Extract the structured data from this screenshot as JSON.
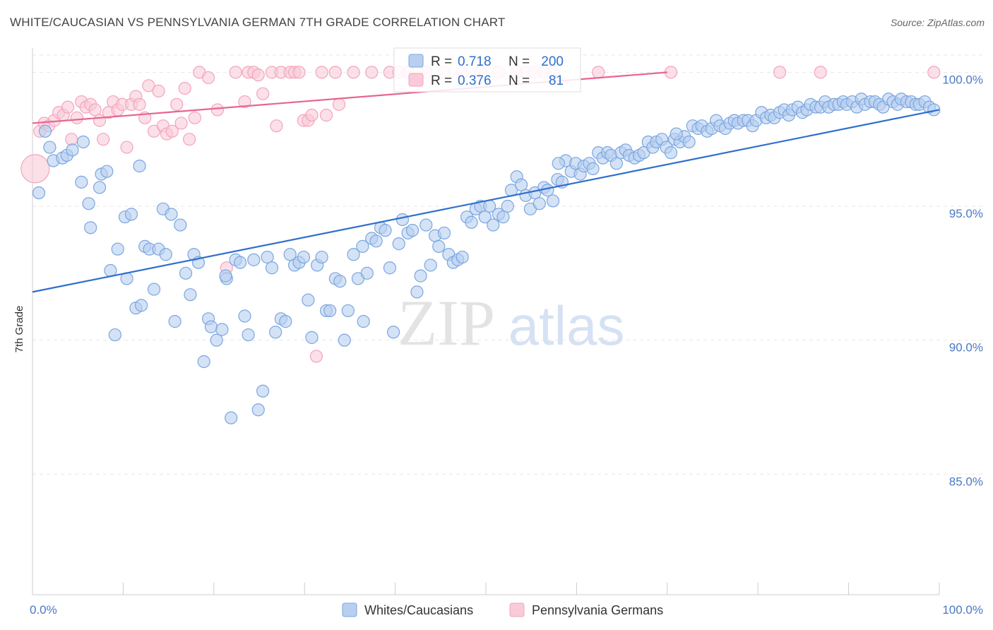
{
  "title": "WHITE/CAUCASIAN VS PENNSYLVANIA GERMAN 7TH GRADE CORRELATION CHART",
  "source": "Source: ZipAtlas.com",
  "watermark": {
    "zip": "ZIP",
    "atlas": "atlas"
  },
  "chart_data": {
    "type": "scatter",
    "ylabel": "7th Grade",
    "xlim": [
      0,
      100
    ],
    "ylim": [
      80.5,
      100.8
    ],
    "x_tick_labels": [
      "0.0%",
      "100.0%"
    ],
    "y_ticks": [
      85,
      90,
      95,
      100
    ],
    "y_tick_labels": [
      "85.0%",
      "90.0%",
      "95.0%",
      "100.0%"
    ],
    "grid": true,
    "legend_position": "bottom",
    "stats_box_position": "top-center",
    "series": [
      {
        "name": "Whites/Caucasians",
        "color": "#7aa6e0",
        "line_color": "#2e6fcc",
        "r_label": "R =",
        "r": "0.718",
        "n_label": "N =",
        "n": "200",
        "trend": {
          "x": [
            0,
            100
          ],
          "y": [
            91.8,
            98.6
          ]
        },
        "points": [
          [
            0.7,
            95.5
          ],
          [
            1.4,
            97.8
          ],
          [
            1.9,
            97.2
          ],
          [
            2.3,
            96.7
          ],
          [
            3.3,
            96.8
          ],
          [
            3.8,
            96.9
          ],
          [
            4.4,
            97.1
          ],
          [
            5.6,
            97.4
          ],
          [
            6.2,
            95.1
          ],
          [
            5.4,
            95.9
          ],
          [
            6.4,
            94.2
          ],
          [
            7.4,
            95.7
          ],
          [
            7.6,
            96.2
          ],
          [
            8.2,
            96.3
          ],
          [
            8.6,
            92.6
          ],
          [
            9.1,
            90.2
          ],
          [
            9.4,
            93.4
          ],
          [
            10.2,
            94.6
          ],
          [
            10.4,
            92.3
          ],
          [
            10.9,
            94.7
          ],
          [
            11.4,
            91.2
          ],
          [
            11.8,
            96.5
          ],
          [
            12.4,
            93.5
          ],
          [
            12.9,
            93.4
          ],
          [
            13.4,
            91.9
          ],
          [
            13.9,
            93.4
          ],
          [
            14.4,
            94.9
          ],
          [
            14.7,
            93.2
          ],
          [
            15.3,
            94.7
          ],
          [
            15.7,
            90.7
          ],
          [
            16.3,
            94.3
          ],
          [
            16.9,
            92.5
          ],
          [
            17.4,
            91.7
          ],
          [
            17.8,
            93.2
          ],
          [
            18.3,
            92.9
          ],
          [
            18.9,
            89.2
          ],
          [
            19.4,
            90.8
          ],
          [
            19.7,
            90.5
          ],
          [
            20.3,
            90.0
          ],
          [
            20.9,
            90.4
          ],
          [
            21.4,
            92.3
          ],
          [
            21.9,
            87.1
          ],
          [
            22.4,
            93.0
          ],
          [
            22.9,
            92.9
          ],
          [
            23.4,
            90.9
          ],
          [
            23.8,
            90.2
          ],
          [
            24.4,
            93.0
          ],
          [
            24.9,
            87.4
          ],
          [
            25.4,
            88.1
          ],
          [
            25.9,
            93.1
          ],
          [
            26.4,
            92.7
          ],
          [
            26.8,
            90.3
          ],
          [
            27.4,
            90.8
          ],
          [
            27.9,
            90.7
          ],
          [
            28.4,
            93.2
          ],
          [
            28.9,
            92.8
          ],
          [
            29.4,
            92.9
          ],
          [
            29.9,
            93.1
          ],
          [
            30.4,
            91.5
          ],
          [
            30.8,
            90.1
          ],
          [
            31.4,
            92.8
          ],
          [
            31.9,
            93.1
          ],
          [
            32.4,
            91.1
          ],
          [
            32.8,
            91.1
          ],
          [
            33.4,
            92.3
          ],
          [
            33.9,
            92.2
          ],
          [
            34.4,
            90.0
          ],
          [
            34.8,
            91.1
          ],
          [
            35.4,
            93.2
          ],
          [
            35.9,
            92.3
          ],
          [
            36.4,
            93.5
          ],
          [
            36.9,
            92.5
          ],
          [
            37.4,
            93.8
          ],
          [
            37.9,
            93.7
          ],
          [
            38.4,
            94.2
          ],
          [
            38.9,
            94.1
          ],
          [
            39.4,
            92.7
          ],
          [
            39.8,
            90.3
          ],
          [
            40.4,
            93.6
          ],
          [
            40.8,
            94.5
          ],
          [
            41.4,
            94.0
          ],
          [
            41.9,
            94.1
          ],
          [
            42.4,
            91.8
          ],
          [
            42.8,
            92.4
          ],
          [
            43.4,
            94.3
          ],
          [
            43.9,
            92.8
          ],
          [
            44.4,
            93.9
          ],
          [
            44.8,
            93.5
          ],
          [
            45.4,
            94.0
          ],
          [
            45.9,
            93.2
          ],
          [
            46.4,
            92.9
          ],
          [
            46.9,
            93.0
          ],
          [
            47.4,
            93.1
          ],
          [
            47.9,
            94.6
          ],
          [
            48.4,
            94.4
          ],
          [
            48.9,
            94.9
          ],
          [
            49.4,
            95.0
          ],
          [
            49.9,
            94.6
          ],
          [
            50.4,
            95.0
          ],
          [
            50.8,
            94.3
          ],
          [
            51.4,
            94.7
          ],
          [
            51.9,
            94.6
          ],
          [
            52.4,
            95.0
          ],
          [
            52.8,
            95.6
          ],
          [
            53.4,
            96.1
          ],
          [
            53.9,
            95.8
          ],
          [
            54.4,
            95.4
          ],
          [
            54.9,
            94.9
          ],
          [
            55.4,
            95.5
          ],
          [
            55.9,
            95.1
          ],
          [
            56.4,
            95.7
          ],
          [
            56.8,
            95.6
          ],
          [
            57.4,
            95.2
          ],
          [
            57.9,
            96.0
          ],
          [
            58.4,
            95.9
          ],
          [
            58.8,
            96.7
          ],
          [
            59.4,
            96.3
          ],
          [
            59.9,
            96.6
          ],
          [
            60.4,
            96.2
          ],
          [
            60.8,
            96.5
          ],
          [
            61.4,
            96.6
          ],
          [
            61.8,
            96.4
          ],
          [
            62.4,
            97.0
          ],
          [
            62.9,
            96.8
          ],
          [
            63.4,
            97.0
          ],
          [
            63.8,
            96.9
          ],
          [
            64.4,
            96.6
          ],
          [
            64.9,
            97.0
          ],
          [
            65.4,
            97.1
          ],
          [
            65.8,
            96.9
          ],
          [
            66.4,
            96.8
          ],
          [
            66.9,
            96.9
          ],
          [
            67.4,
            97.0
          ],
          [
            67.9,
            97.4
          ],
          [
            68.4,
            97.2
          ],
          [
            68.8,
            97.4
          ],
          [
            69.4,
            97.5
          ],
          [
            69.9,
            97.2
          ],
          [
            70.4,
            97.0
          ],
          [
            70.8,
            97.5
          ],
          [
            71.4,
            97.4
          ],
          [
            71.9,
            97.6
          ],
          [
            72.4,
            97.4
          ],
          [
            72.8,
            98.0
          ],
          [
            73.4,
            97.9
          ],
          [
            73.8,
            98.0
          ],
          [
            74.4,
            97.8
          ],
          [
            74.9,
            97.9
          ],
          [
            75.4,
            98.2
          ],
          [
            75.8,
            98.0
          ],
          [
            76.4,
            97.9
          ],
          [
            76.9,
            98.1
          ],
          [
            77.4,
            98.2
          ],
          [
            77.8,
            98.1
          ],
          [
            78.4,
            98.2
          ],
          [
            78.9,
            98.2
          ],
          [
            79.4,
            98.0
          ],
          [
            79.8,
            98.2
          ],
          [
            80.4,
            98.5
          ],
          [
            80.9,
            98.3
          ],
          [
            81.4,
            98.4
          ],
          [
            81.8,
            98.3
          ],
          [
            82.4,
            98.5
          ],
          [
            82.9,
            98.6
          ],
          [
            83.4,
            98.4
          ],
          [
            83.8,
            98.6
          ],
          [
            84.4,
            98.7
          ],
          [
            84.9,
            98.5
          ],
          [
            85.4,
            98.6
          ],
          [
            85.8,
            98.8
          ],
          [
            86.4,
            98.7
          ],
          [
            86.9,
            98.7
          ],
          [
            87.4,
            98.9
          ],
          [
            87.8,
            98.7
          ],
          [
            88.4,
            98.8
          ],
          [
            88.9,
            98.8
          ],
          [
            89.4,
            98.9
          ],
          [
            89.8,
            98.8
          ],
          [
            90.4,
            98.9
          ],
          [
            90.9,
            98.7
          ],
          [
            91.4,
            99.0
          ],
          [
            91.8,
            98.8
          ],
          [
            92.4,
            98.9
          ],
          [
            92.9,
            98.9
          ],
          [
            93.4,
            98.8
          ],
          [
            93.8,
            98.7
          ],
          [
            94.4,
            99.0
          ],
          [
            94.9,
            98.9
          ],
          [
            95.4,
            98.8
          ],
          [
            95.8,
            99.0
          ],
          [
            96.4,
            98.9
          ],
          [
            96.9,
            98.9
          ],
          [
            97.4,
            98.8
          ],
          [
            97.8,
            98.8
          ],
          [
            98.4,
            98.9
          ],
          [
            98.9,
            98.7
          ],
          [
            99.4,
            98.6
          ],
          [
            21.3,
            92.4
          ],
          [
            12.0,
            91.3
          ],
          [
            36.5,
            90.7
          ],
          [
            58.0,
            96.6
          ],
          [
            71.0,
            97.7
          ]
        ]
      },
      {
        "name": "Pennsylvania Germans",
        "color": "#f4a3bd",
        "line_color": "#e7658f",
        "r_label": "R =",
        "r": "0.376",
        "n_label": "N =",
        "n": "81",
        "trend": {
          "x": [
            0,
            70
          ],
          "y": [
            98.1,
            100.0
          ]
        },
        "points": [
          [
            0.3,
            96.4
          ],
          [
            0.8,
            97.8
          ],
          [
            1.3,
            98.1
          ],
          [
            1.8,
            98.0
          ],
          [
            2.4,
            98.2
          ],
          [
            2.9,
            98.5
          ],
          [
            3.4,
            98.4
          ],
          [
            3.9,
            98.7
          ],
          [
            4.3,
            97.5
          ],
          [
            4.9,
            98.3
          ],
          [
            5.4,
            98.9
          ],
          [
            5.9,
            98.7
          ],
          [
            6.4,
            98.8
          ],
          [
            6.9,
            98.6
          ],
          [
            7.4,
            98.2
          ],
          [
            7.8,
            97.5
          ],
          [
            8.4,
            98.5
          ],
          [
            8.9,
            98.9
          ],
          [
            9.4,
            98.6
          ],
          [
            9.9,
            98.8
          ],
          [
            10.4,
            97.2
          ],
          [
            10.9,
            98.8
          ],
          [
            11.4,
            99.1
          ],
          [
            11.8,
            98.8
          ],
          [
            12.4,
            98.3
          ],
          [
            12.8,
            99.5
          ],
          [
            13.4,
            97.8
          ],
          [
            13.9,
            99.3
          ],
          [
            14.4,
            98.0
          ],
          [
            14.8,
            97.7
          ],
          [
            15.4,
            97.8
          ],
          [
            15.9,
            98.8
          ],
          [
            16.4,
            98.1
          ],
          [
            16.8,
            99.4
          ],
          [
            17.3,
            97.5
          ],
          [
            17.9,
            98.3
          ],
          [
            18.4,
            100.0
          ],
          [
            19.4,
            99.8
          ],
          [
            20.4,
            98.6
          ],
          [
            21.4,
            92.7
          ],
          [
            22.4,
            100.0
          ],
          [
            23.4,
            98.9
          ],
          [
            23.8,
            100.0
          ],
          [
            24.4,
            100.0
          ],
          [
            24.9,
            99.9
          ],
          [
            25.4,
            99.2
          ],
          [
            26.4,
            100.0
          ],
          [
            26.9,
            98.0
          ],
          [
            27.4,
            100.0
          ],
          [
            28.4,
            100.0
          ],
          [
            28.9,
            100.0
          ],
          [
            29.4,
            100.0
          ],
          [
            29.9,
            98.2
          ],
          [
            30.4,
            98.2
          ],
          [
            30.8,
            98.4
          ],
          [
            31.3,
            89.4
          ],
          [
            31.9,
            100.0
          ],
          [
            32.4,
            98.4
          ],
          [
            33.4,
            100.0
          ],
          [
            33.8,
            98.8
          ],
          [
            35.4,
            100.0
          ],
          [
            37.4,
            100.0
          ],
          [
            39.4,
            100.0
          ],
          [
            40.4,
            100.0
          ],
          [
            41.4,
            100.0
          ],
          [
            42.4,
            100.0
          ],
          [
            43.4,
            100.0
          ],
          [
            45.4,
            100.0
          ],
          [
            47.4,
            100.0
          ],
          [
            49.4,
            100.0
          ],
          [
            51.4,
            100.0
          ],
          [
            53.4,
            100.0
          ],
          [
            54.4,
            100.0
          ],
          [
            55.4,
            100.0
          ],
          [
            56.4,
            100.0
          ],
          [
            57.4,
            100.0
          ],
          [
            62.4,
            100.0
          ],
          [
            70.4,
            100.0
          ],
          [
            82.4,
            100.0
          ],
          [
            86.9,
            100.0
          ],
          [
            99.4,
            100.0
          ]
        ]
      }
    ]
  }
}
